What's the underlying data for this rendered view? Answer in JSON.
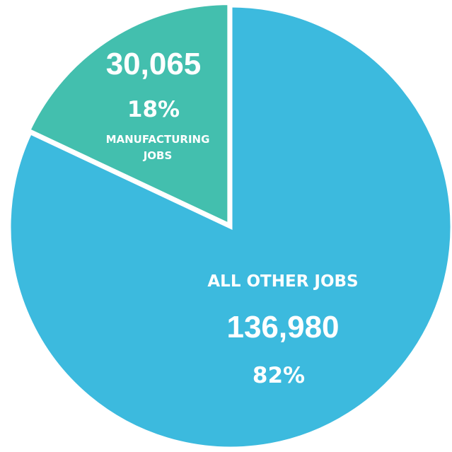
{
  "chart_data": {
    "type": "pie",
    "slices": [
      {
        "label_lines": [
          "MANUFACTURING",
          "JOBS"
        ],
        "value": 30065,
        "value_label": "30,065",
        "percent_label": "18%",
        "color": "#43bfae"
      },
      {
        "label_lines": [
          "ALL OTHER JOBS"
        ],
        "value": 136980,
        "value_label": "136,980",
        "percent_label": "82%",
        "color": "#3cbade"
      }
    ],
    "start": "top, clockwise from 12 o'clock (All Other Jobs first)",
    "exploded_slice": "Manufacturing Jobs",
    "separator_color": "#ffffff",
    "legend": "none"
  }
}
